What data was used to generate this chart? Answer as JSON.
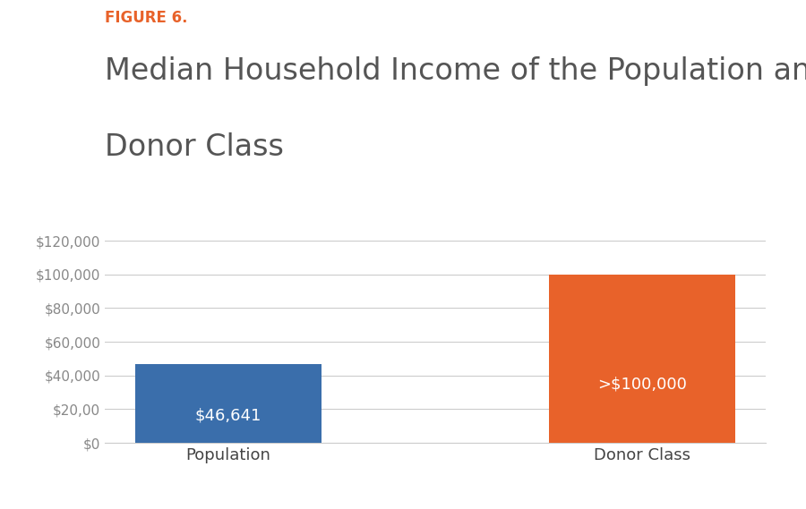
{
  "figure_label": "FIGURE 6.",
  "title_line1": "Median Household Income of the Population and the",
  "title_line2": "Donor Class",
  "categories": [
    "Population",
    "Donor Class"
  ],
  "values": [
    46641,
    100000
  ],
  "bar_colors": [
    "#3a6eab",
    "#e8622a"
  ],
  "bar_labels": [
    "$46,641",
    ">$100,000"
  ],
  "label_color": "#ffffff",
  "label_fontsize": 13,
  "ylim": [
    0,
    130000
  ],
  "yticks": [
    0,
    20000,
    40000,
    60000,
    80000,
    100000,
    120000
  ],
  "figure_label_color": "#e8622a",
  "figure_label_fontsize": 12,
  "title_fontsize": 24,
  "title_color": "#555555",
  "tick_color": "#888888",
  "grid_color": "#cccccc",
  "background_color": "#ffffff",
  "bar_width": 0.45
}
